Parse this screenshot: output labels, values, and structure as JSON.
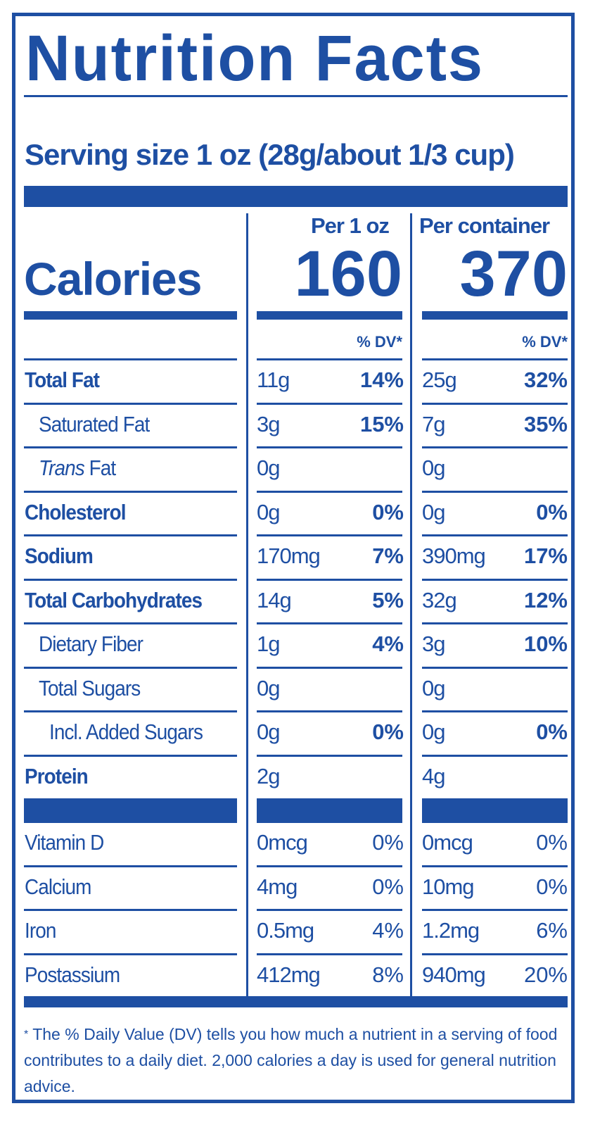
{
  "title": "Nutrition Facts",
  "serving": "Serving size   1 oz (28g/about 1/3 cup)",
  "calories_label": "Calories",
  "col1_header": "Per 1 oz",
  "col2_header": "Per container",
  "col1_calories": "160",
  "col2_calories": "370",
  "dv_header": "% DV*",
  "nutrients": [
    {
      "label": "Total Fat",
      "v1": "11g",
      "d1": "14%",
      "v2": "25g",
      "d2": "32%"
    },
    {
      "label": "Saturated Fat",
      "v1": "3g",
      "d1": "15%",
      "v2": "7g",
      "d2": "35%"
    },
    {
      "label_italic": "Trans",
      "label": " Fat",
      "v1": "0g",
      "d1": "",
      "v2": "0g",
      "d2": ""
    },
    {
      "label": "Cholesterol",
      "v1": "0g",
      "d1": "0%",
      "v2": "0g",
      "d2": "0%"
    },
    {
      "label": "Sodium",
      "v1": "170mg",
      "d1": "7%",
      "v2": "390mg",
      "d2": "17%"
    },
    {
      "label": "Total Carbohydrates",
      "v1": "14g",
      "d1": "5%",
      "v2": "32g",
      "d2": "12%"
    },
    {
      "label": "Dietary Fiber",
      "v1": "1g",
      "d1": "4%",
      "v2": "3g",
      "d2": "10%"
    },
    {
      "label": "Total Sugars",
      "v1": "0g",
      "d1": "",
      "v2": "0g",
      "d2": ""
    },
    {
      "label": "Incl. Added Sugars",
      "v1": "0g",
      "d1": "0%",
      "v2": "0g",
      "d2": "0%"
    },
    {
      "label": "Protein",
      "v1": "2g",
      "d1": "",
      "v2": "4g",
      "d2": ""
    }
  ],
  "vitamins": [
    {
      "label": "Vitamin D",
      "v1": "0mcg",
      "d1": "0%",
      "v2": "0mcg",
      "d2": "0%"
    },
    {
      "label": "Calcium",
      "v1": "4mg",
      "d1": "0%",
      "v2": "10mg",
      "d2": "0%"
    },
    {
      "label": "Iron",
      "v1": "0.5mg",
      "d1": "4%",
      "v2": "1.2mg",
      "d2": "6%"
    },
    {
      "label": "Postassium",
      "v1": "412mg",
      "d1": "8%",
      "v2": "940mg",
      "d2": "20%"
    }
  ],
  "footnote_star": "*",
  "footnote": "The % Daily Value (DV) tells you how much a nutrient in a serving of food contributes to a daily diet. 2,000 calories a day is used for general nutrition advice.",
  "colors": {
    "ink": "#1e4fa3",
    "background": "#ffffff"
  }
}
